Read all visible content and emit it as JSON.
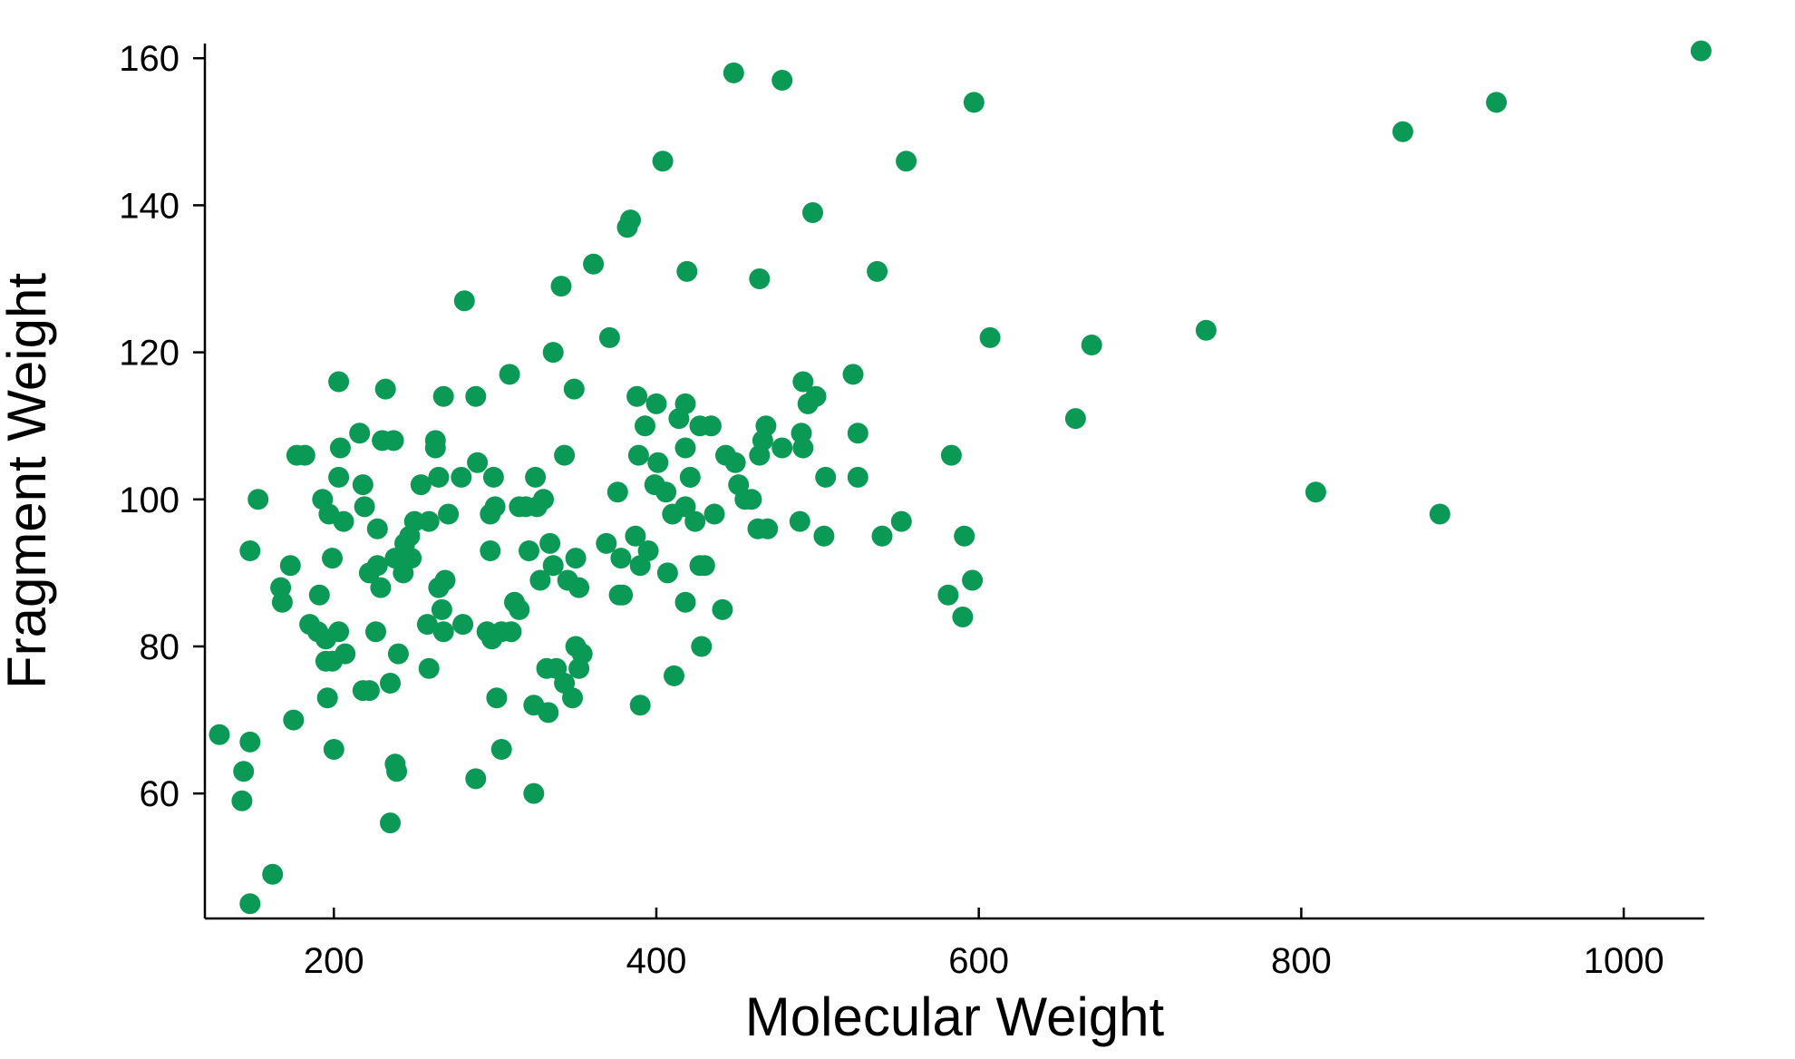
{
  "chart_data": {
    "type": "scatter",
    "title": "",
    "xlabel": "Molecular Weight",
    "ylabel": "Fragment Weight",
    "xlim": [
      120,
      1050
    ],
    "ylim": [
      43,
      162
    ],
    "xticks": [
      200,
      400,
      600,
      800,
      1000
    ],
    "yticks": [
      60,
      80,
      100,
      120,
      140,
      160
    ],
    "grid": false,
    "legend": "none",
    "color": "#0a9a55",
    "points": [
      [
        448,
        158
      ],
      [
        478,
        157
      ],
      [
        597,
        154
      ],
      [
        1048,
        161
      ],
      [
        921,
        154
      ],
      [
        863,
        150
      ],
      [
        404,
        146
      ],
      [
        555,
        146
      ],
      [
        497,
        139
      ],
      [
        384,
        138
      ],
      [
        382,
        137
      ],
      [
        361,
        132
      ],
      [
        419,
        131
      ],
      [
        537,
        131
      ],
      [
        464,
        130
      ],
      [
        341,
        129
      ],
      [
        281,
        127
      ],
      [
        607,
        122
      ],
      [
        670,
        121
      ],
      [
        741,
        123
      ],
      [
        371,
        122
      ],
      [
        336,
        120
      ],
      [
        309,
        117
      ],
      [
        203,
        116
      ],
      [
        522,
        117
      ],
      [
        232,
        115
      ],
      [
        268,
        114
      ],
      [
        288,
        114
      ],
      [
        349,
        115
      ],
      [
        491,
        116
      ],
      [
        494,
        113
      ],
      [
        499,
        114
      ],
      [
        388,
        114
      ],
      [
        400,
        113
      ],
      [
        418,
        113
      ],
      [
        660,
        111
      ],
      [
        216,
        109
      ],
      [
        393,
        110
      ],
      [
        414,
        111
      ],
      [
        427,
        110
      ],
      [
        434,
        110
      ],
      [
        468,
        110
      ],
      [
        490,
        109
      ],
      [
        525,
        109
      ],
      [
        237,
        108
      ],
      [
        230,
        108
      ],
      [
        263,
        108
      ],
      [
        466,
        108
      ],
      [
        478,
        107
      ],
      [
        491,
        107
      ],
      [
        177,
        106
      ],
      [
        182,
        106
      ],
      [
        204,
        107
      ],
      [
        263,
        107
      ],
      [
        418,
        107
      ],
      [
        389,
        106
      ],
      [
        443,
        106
      ],
      [
        449,
        105
      ],
      [
        464,
        106
      ],
      [
        583,
        106
      ],
      [
        289,
        105
      ],
      [
        343,
        106
      ],
      [
        401,
        105
      ],
      [
        203,
        103
      ],
      [
        265,
        103
      ],
      [
        279,
        103
      ],
      [
        254,
        102
      ],
      [
        299,
        103
      ],
      [
        421,
        103
      ],
      [
        505,
        103
      ],
      [
        525,
        103
      ],
      [
        325,
        103
      ],
      [
        451,
        102
      ],
      [
        218,
        102
      ],
      [
        399,
        102
      ],
      [
        406,
        101
      ],
      [
        376,
        101
      ],
      [
        193,
        100
      ],
      [
        153,
        100
      ],
      [
        219,
        99
      ],
      [
        197,
        98
      ],
      [
        271,
        98
      ],
      [
        297,
        98
      ],
      [
        250,
        97
      ],
      [
        259,
        97
      ],
      [
        206,
        97
      ],
      [
        330,
        100
      ],
      [
        319,
        99
      ],
      [
        315,
        99
      ],
      [
        326,
        99
      ],
      [
        300,
        99
      ],
      [
        410,
        98
      ],
      [
        418,
        99
      ],
      [
        424,
        97
      ],
      [
        436,
        98
      ],
      [
        455,
        100
      ],
      [
        459,
        100
      ],
      [
        552,
        97
      ],
      [
        489,
        97
      ],
      [
        809,
        101
      ],
      [
        886,
        98
      ],
      [
        227,
        96
      ],
      [
        247,
        95
      ],
      [
        244,
        94
      ],
      [
        334,
        94
      ],
      [
        369,
        94
      ],
      [
        387,
        95
      ],
      [
        395,
        93
      ],
      [
        463,
        96
      ],
      [
        469,
        96
      ],
      [
        504,
        95
      ],
      [
        540,
        95
      ],
      [
        591,
        95
      ],
      [
        148,
        93
      ],
      [
        199,
        92
      ],
      [
        227,
        91
      ],
      [
        238,
        92
      ],
      [
        248,
        92
      ],
      [
        297,
        93
      ],
      [
        321,
        93
      ],
      [
        350,
        92
      ],
      [
        378,
        92
      ],
      [
        390,
        91
      ],
      [
        427,
        91
      ],
      [
        430,
        91
      ],
      [
        243,
        90
      ],
      [
        222,
        90
      ],
      [
        229,
        88
      ],
      [
        265,
        88
      ],
      [
        269,
        89
      ],
      [
        328,
        89
      ],
      [
        345,
        89
      ],
      [
        352,
        88
      ],
      [
        336,
        91
      ],
      [
        407,
        90
      ],
      [
        596,
        89
      ],
      [
        173,
        91
      ],
      [
        167,
        88
      ],
      [
        168,
        86
      ],
      [
        191,
        87
      ],
      [
        267,
        85
      ],
      [
        312,
        86
      ],
      [
        315,
        85
      ],
      [
        377,
        87
      ],
      [
        379,
        87
      ],
      [
        418,
        86
      ],
      [
        441,
        85
      ],
      [
        581,
        87
      ],
      [
        590,
        84
      ],
      [
        185,
        83
      ],
      [
        190,
        82
      ],
      [
        195,
        81
      ],
      [
        203,
        82
      ],
      [
        258,
        83
      ],
      [
        268,
        82
      ],
      [
        280,
        83
      ],
      [
        295,
        82
      ],
      [
        298,
        81
      ],
      [
        304,
        82
      ],
      [
        310,
        82
      ],
      [
        226,
        82
      ],
      [
        350,
        80
      ],
      [
        354,
        79
      ],
      [
        428,
        80
      ],
      [
        195,
        78
      ],
      [
        199,
        78
      ],
      [
        207,
        79
      ],
      [
        218,
        74
      ],
      [
        222,
        74
      ],
      [
        235,
        75
      ],
      [
        240,
        79
      ],
      [
        259,
        77
      ],
      [
        301,
        73
      ],
      [
        332,
        77
      ],
      [
        338,
        77
      ],
      [
        352,
        77
      ],
      [
        343,
        75
      ],
      [
        348,
        73
      ],
      [
        411,
        76
      ],
      [
        390,
        72
      ],
      [
        175,
        70
      ],
      [
        196,
        73
      ],
      [
        324,
        72
      ],
      [
        333,
        71
      ],
      [
        129,
        68
      ],
      [
        148,
        67
      ],
      [
        144,
        63
      ],
      [
        143,
        59
      ],
      [
        200,
        66
      ],
      [
        238,
        64
      ],
      [
        239,
        63
      ],
      [
        304,
        66
      ],
      [
        288,
        62
      ],
      [
        324,
        60
      ],
      [
        235,
        56
      ],
      [
        162,
        49
      ],
      [
        148,
        45
      ]
    ]
  }
}
